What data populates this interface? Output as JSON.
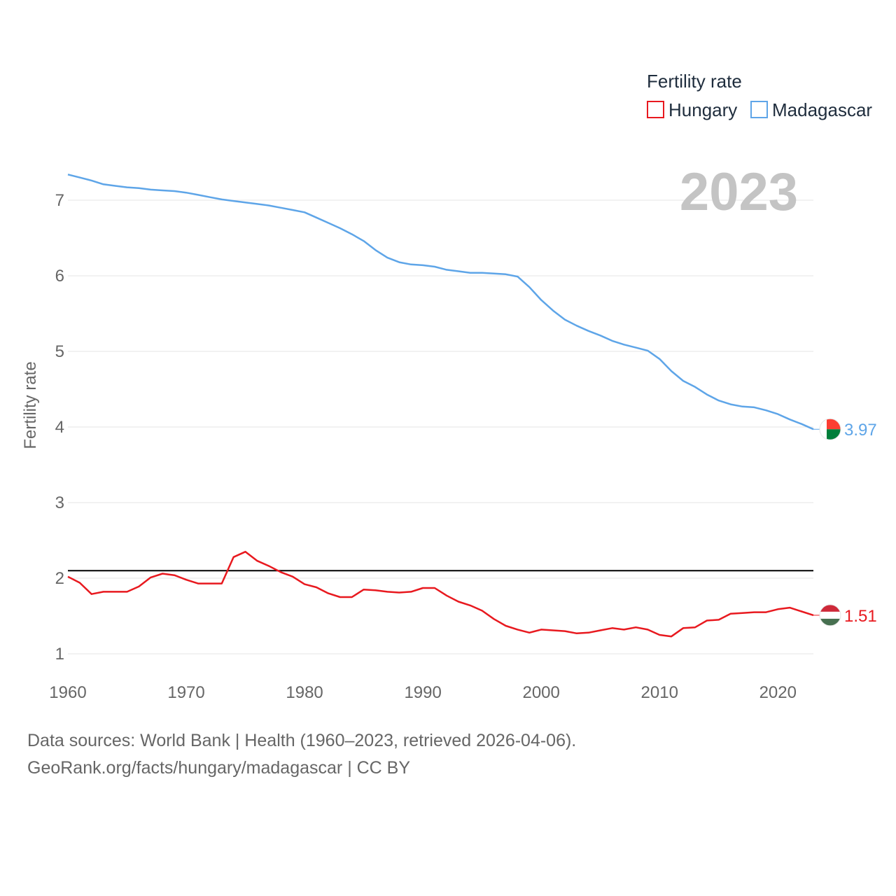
{
  "chart_data": {
    "type": "line",
    "title": "Fertility rate",
    "current_year": "2023",
    "ylabel": "Fertility rate",
    "xlabel": "",
    "xlim": [
      1960,
      2023
    ],
    "ylim": [
      0.8,
      7.5
    ],
    "x_ticks": [
      1960,
      1970,
      1980,
      1990,
      2000,
      2010,
      2020
    ],
    "y_ticks": [
      1,
      2,
      3,
      4,
      5,
      6,
      7
    ],
    "reference_line": {
      "y": 2.1,
      "color": "#000000"
    },
    "legend": {
      "title": "Fertility rate",
      "placement": "top-right"
    },
    "x": [
      1960,
      1961,
      1962,
      1963,
      1964,
      1965,
      1966,
      1967,
      1968,
      1969,
      1970,
      1971,
      1972,
      1973,
      1974,
      1975,
      1976,
      1977,
      1978,
      1979,
      1980,
      1981,
      1982,
      1983,
      1984,
      1985,
      1986,
      1987,
      1988,
      1989,
      1990,
      1991,
      1992,
      1993,
      1994,
      1995,
      1996,
      1997,
      1998,
      1999,
      2000,
      2001,
      2002,
      2003,
      2004,
      2005,
      2006,
      2007,
      2008,
      2009,
      2010,
      2011,
      2012,
      2013,
      2014,
      2015,
      2016,
      2017,
      2018,
      2019,
      2020,
      2021,
      2022,
      2023
    ],
    "series": [
      {
        "name": "Hungary",
        "color": "#e8191f",
        "end_label": "1.51",
        "flag_colors": [
          "#ce2939",
          "#ffffff",
          "#477050"
        ],
        "values": [
          2.02,
          1.94,
          1.79,
          1.82,
          1.82,
          1.82,
          1.89,
          2.01,
          2.06,
          2.04,
          1.98,
          1.93,
          1.93,
          1.93,
          2.28,
          2.35,
          2.23,
          2.16,
          2.08,
          2.02,
          1.92,
          1.88,
          1.8,
          1.75,
          1.75,
          1.85,
          1.84,
          1.82,
          1.81,
          1.82,
          1.87,
          1.87,
          1.77,
          1.69,
          1.64,
          1.57,
          1.46,
          1.37,
          1.32,
          1.28,
          1.32,
          1.31,
          1.3,
          1.27,
          1.28,
          1.31,
          1.34,
          1.32,
          1.35,
          1.32,
          1.25,
          1.23,
          1.34,
          1.35,
          1.44,
          1.45,
          1.53,
          1.54,
          1.55,
          1.55,
          1.59,
          1.61,
          1.56,
          1.51
        ]
      },
      {
        "name": "Madagascar",
        "color": "#5ea5e8",
        "end_label": "3.97",
        "flag_colors": [
          "#fc3d32",
          "#007e3a",
          "#ffffff"
        ],
        "values": [
          7.34,
          7.3,
          7.26,
          7.21,
          7.19,
          7.17,
          7.16,
          7.14,
          7.13,
          7.12,
          7.1,
          7.07,
          7.04,
          7.01,
          6.99,
          6.97,
          6.95,
          6.93,
          6.9,
          6.87,
          6.84,
          6.77,
          6.7,
          6.63,
          6.55,
          6.46,
          6.34,
          6.24,
          6.18,
          6.15,
          6.14,
          6.12,
          6.08,
          6.06,
          6.04,
          6.04,
          6.03,
          6.02,
          5.99,
          5.85,
          5.68,
          5.54,
          5.42,
          5.34,
          5.27,
          5.21,
          5.14,
          5.09,
          5.05,
          5.01,
          4.9,
          4.74,
          4.61,
          4.53,
          4.43,
          4.35,
          4.3,
          4.27,
          4.26,
          4.22,
          4.17,
          4.1,
          4.04,
          3.97
        ]
      }
    ]
  },
  "footer": {
    "sources": "Data sources: World Bank | Health (1960–2023, retrieved 2026-04-06).",
    "attribution": "GeoRank.org/facts/hungary/madagascar | CC BY"
  }
}
